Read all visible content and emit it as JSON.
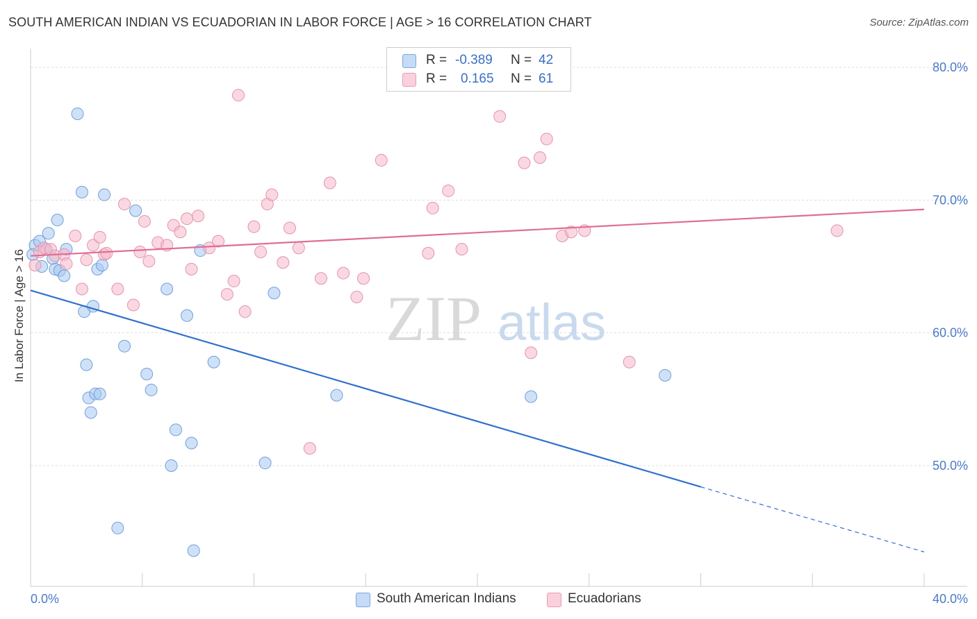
{
  "title": "SOUTH AMERICAN INDIAN VS ECUADORIAN IN LABOR FORCE | AGE > 16 CORRELATION CHART",
  "source": "Source: ZipAtlas.com",
  "watermark": {
    "zip": "ZIP",
    "atlas": "atlas"
  },
  "legend": {
    "r_label": "R =",
    "n_label": "N =",
    "rows": [
      {
        "r": "-0.389",
        "n": "42",
        "color": "#a8c8f0"
      },
      {
        "r": "0.165",
        "n": "61",
        "color": "#f5b8cb"
      }
    ]
  },
  "chart_data": {
    "type": "scatter",
    "title": "SOUTH AMERICAN INDIAN VS ECUADORIAN IN LABOR FORCE | AGE > 16 CORRELATION CHART",
    "xlabel": "",
    "ylabel": "In Labor Force | Age > 16",
    "xlim": [
      0,
      40
    ],
    "ylim": [
      40,
      82
    ],
    "x_tick_labels": [
      "0.0%",
      "40.0%"
    ],
    "y_ticks": [
      50,
      60,
      70,
      80
    ],
    "y_tick_labels": [
      "50.0%",
      "60.0%",
      "70.0%",
      "80.0%"
    ],
    "grid": true,
    "legend_position": "bottom-center",
    "series": [
      {
        "name": "South American Indians",
        "color": "#a8c8f0",
        "stroke": "#6f9fdc",
        "line_color": "#3070cc",
        "trend": {
          "x0": 0,
          "y0": 63.2,
          "x1": 30,
          "y1": 48.4,
          "dash_to_x": 40,
          "dash_to_y": 43.5
        },
        "points": [
          [
            0.2,
            66.6
          ],
          [
            0.4,
            66.9
          ],
          [
            0.5,
            65.0
          ],
          [
            0.7,
            66.3
          ],
          [
            0.8,
            67.5
          ],
          [
            1.0,
            65.6
          ],
          [
            1.1,
            64.8
          ],
          [
            1.2,
            68.5
          ],
          [
            1.3,
            64.7
          ],
          [
            1.5,
            64.3
          ],
          [
            1.6,
            66.3
          ],
          [
            2.1,
            76.5
          ],
          [
            2.3,
            70.6
          ],
          [
            2.4,
            61.6
          ],
          [
            2.5,
            57.6
          ],
          [
            2.6,
            55.1
          ],
          [
            2.7,
            54.0
          ],
          [
            2.8,
            62.0
          ],
          [
            2.9,
            55.4
          ],
          [
            3.0,
            64.8
          ],
          [
            3.1,
            55.4
          ],
          [
            3.2,
            65.1
          ],
          [
            3.3,
            70.4
          ],
          [
            3.9,
            45.3
          ],
          [
            4.2,
            59.0
          ],
          [
            4.7,
            69.2
          ],
          [
            5.2,
            56.9
          ],
          [
            5.4,
            55.7
          ],
          [
            6.1,
            63.3
          ],
          [
            6.3,
            50.0
          ],
          [
            6.5,
            52.7
          ],
          [
            7.0,
            61.3
          ],
          [
            7.2,
            51.7
          ],
          [
            7.3,
            43.6
          ],
          [
            7.6,
            66.2
          ],
          [
            8.2,
            57.8
          ],
          [
            10.5,
            50.2
          ],
          [
            10.9,
            63.0
          ],
          [
            13.7,
            55.3
          ],
          [
            22.4,
            55.2
          ],
          [
            28.4,
            56.8
          ],
          [
            0.1,
            65.9
          ]
        ]
      },
      {
        "name": "Ecuadorians",
        "color": "#f5b8cb",
        "stroke": "#e592ab",
        "line_color": "#e06d94",
        "trend": {
          "x0": 0,
          "y0": 65.8,
          "x1": 40,
          "y1": 69.3
        },
        "points": [
          [
            0.2,
            65.1
          ],
          [
            0.4,
            66.1
          ],
          [
            0.6,
            66.4
          ],
          [
            0.9,
            66.3
          ],
          [
            1.1,
            65.8
          ],
          [
            1.5,
            65.9
          ],
          [
            1.6,
            65.2
          ],
          [
            2.0,
            67.3
          ],
          [
            2.3,
            63.3
          ],
          [
            2.5,
            65.5
          ],
          [
            2.8,
            66.6
          ],
          [
            3.1,
            67.2
          ],
          [
            3.3,
            65.9
          ],
          [
            3.4,
            66.0
          ],
          [
            3.9,
            63.3
          ],
          [
            4.2,
            69.7
          ],
          [
            4.6,
            62.1
          ],
          [
            4.9,
            66.1
          ],
          [
            5.1,
            68.4
          ],
          [
            5.3,
            65.4
          ],
          [
            5.7,
            66.8
          ],
          [
            6.1,
            66.6
          ],
          [
            6.4,
            68.1
          ],
          [
            6.7,
            67.6
          ],
          [
            7.0,
            68.6
          ],
          [
            7.2,
            64.8
          ],
          [
            7.5,
            68.8
          ],
          [
            8.0,
            66.4
          ],
          [
            8.4,
            66.9
          ],
          [
            8.8,
            62.9
          ],
          [
            9.1,
            63.9
          ],
          [
            9.3,
            77.9
          ],
          [
            9.6,
            61.6
          ],
          [
            10.0,
            68.0
          ],
          [
            10.3,
            66.1
          ],
          [
            10.6,
            69.7
          ],
          [
            10.8,
            70.4
          ],
          [
            11.3,
            65.3
          ],
          [
            11.6,
            67.9
          ],
          [
            12.0,
            66.4
          ],
          [
            12.5,
            51.3
          ],
          [
            13.0,
            64.1
          ],
          [
            13.4,
            71.3
          ],
          [
            14.0,
            64.5
          ],
          [
            14.6,
            62.7
          ],
          [
            14.9,
            64.1
          ],
          [
            15.7,
            73.0
          ],
          [
            17.8,
            66.0
          ],
          [
            18.0,
            69.4
          ],
          [
            18.7,
            70.7
          ],
          [
            19.3,
            66.3
          ],
          [
            21.0,
            76.3
          ],
          [
            22.1,
            72.8
          ],
          [
            22.4,
            58.5
          ],
          [
            22.8,
            73.2
          ],
          [
            23.1,
            74.6
          ],
          [
            23.8,
            67.3
          ],
          [
            24.2,
            67.6
          ],
          [
            24.8,
            67.7
          ],
          [
            26.8,
            57.8
          ],
          [
            36.1,
            67.7
          ]
        ]
      }
    ]
  }
}
